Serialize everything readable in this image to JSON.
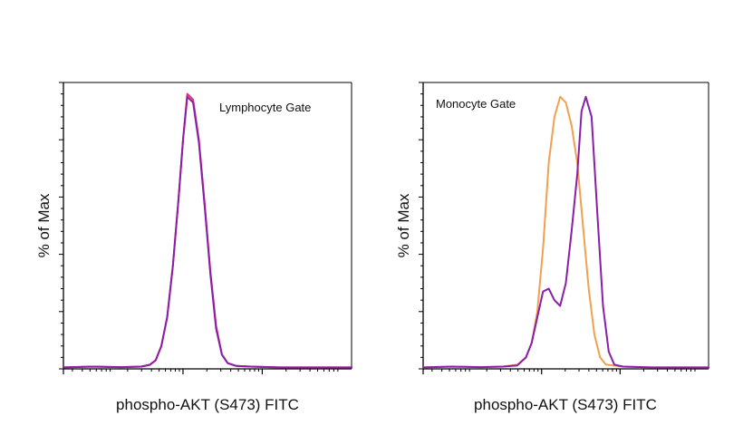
{
  "chart_data": [
    {
      "type": "line",
      "title": "Lymphocyte Gate",
      "xlabel": "phospho-AKT (S473) FITC",
      "ylabel": "% of Max",
      "ylim": [
        0,
        100
      ],
      "grid": false,
      "legend": "none",
      "series": [
        {
          "color": "#e0306a",
          "x": [
            0,
            10,
            20,
            27,
            30,
            32,
            34,
            36,
            38,
            40,
            41.5,
            43,
            45,
            47,
            49,
            51,
            53,
            55,
            57,
            60,
            65,
            75,
            100
          ],
          "y": [
            0.5,
            0.8,
            0.6,
            0.8,
            1.5,
            3,
            8,
            18,
            36,
            60,
            80,
            96,
            94,
            80,
            58,
            34,
            15,
            5,
            2,
            1,
            0.8,
            0.5,
            0.5
          ]
        },
        {
          "color": "#8a1ea8",
          "x": [
            0,
            10,
            20,
            27,
            30,
            32,
            34,
            36,
            38,
            40,
            41.5,
            43,
            45,
            47,
            49,
            51,
            53,
            55,
            57,
            60,
            65,
            75,
            100
          ],
          "y": [
            0.5,
            0.8,
            0.6,
            0.8,
            1.4,
            3,
            8,
            18,
            36,
            60,
            80,
            95,
            93,
            79,
            57,
            33,
            14,
            5,
            2,
            1,
            0.8,
            0.5,
            0.5
          ]
        }
      ]
    },
    {
      "type": "line",
      "title": "Monocyte Gate",
      "xlabel": "phospho-AKT (S473) FITC",
      "ylabel": "% of Max",
      "ylim": [
        0,
        100
      ],
      "grid": false,
      "legend": "none",
      "series": [
        {
          "color": "#f0a050",
          "x": [
            0,
            10,
            20,
            28,
            33,
            36,
            38,
            40,
            42,
            44,
            46,
            48,
            50,
            52,
            54,
            56,
            58,
            60,
            62,
            64,
            70,
            80,
            100
          ],
          "y": [
            0.5,
            0.8,
            0.6,
            0.8,
            1.5,
            4,
            9,
            20,
            42,
            72,
            88,
            95,
            93,
            85,
            72,
            50,
            28,
            12,
            4,
            1.5,
            0.8,
            0.5,
            0.5
          ]
        },
        {
          "color": "#8a1ea8",
          "x": [
            0,
            10,
            20,
            28,
            33,
            36,
            38,
            40,
            42,
            44,
            46,
            48,
            50,
            52,
            54,
            55.5,
            57,
            59,
            61,
            63,
            65,
            67,
            70,
            80,
            100
          ],
          "y": [
            0.5,
            0.8,
            0.6,
            0.8,
            1.2,
            4,
            9,
            18,
            27,
            28,
            24,
            22,
            30,
            48,
            68,
            90,
            95,
            88,
            55,
            22,
            6,
            1.5,
            0.8,
            0.5,
            0.5
          ]
        }
      ]
    }
  ]
}
